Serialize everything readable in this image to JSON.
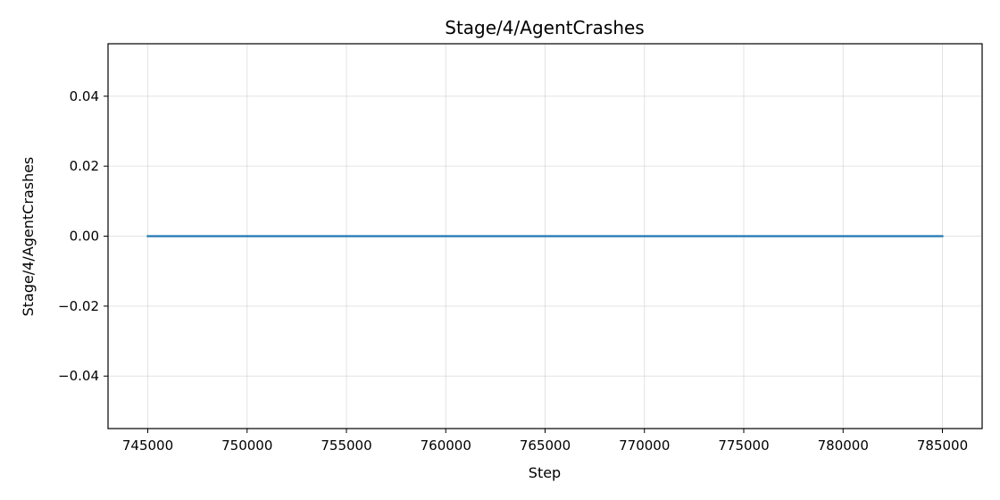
{
  "chart_data": {
    "type": "line",
    "title": "Stage/4/AgentCrashes",
    "xlabel": "Step",
    "ylabel": "Stage/4/AgentCrashes",
    "xlim": [
      743000,
      787000
    ],
    "ylim": [
      -0.055,
      0.055
    ],
    "x_ticks": [
      745000,
      750000,
      755000,
      760000,
      765000,
      770000,
      775000,
      780000,
      785000
    ],
    "x_tick_labels": [
      "745000",
      "750000",
      "755000",
      "760000",
      "765000",
      "770000",
      "775000",
      "780000",
      "785000"
    ],
    "y_ticks": [
      0.04,
      0.02,
      0.0,
      -0.02,
      -0.04
    ],
    "y_tick_labels": [
      "0.04",
      "0.02",
      "0.00",
      "−0.02",
      "−0.04"
    ],
    "grid": true,
    "series": [
      {
        "color": "#1f77b4",
        "x": [
          745000,
          785000
        ],
        "y": [
          0.0,
          0.0
        ]
      }
    ]
  }
}
